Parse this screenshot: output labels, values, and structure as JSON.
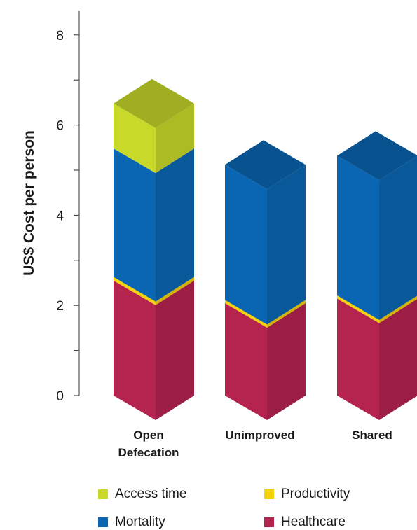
{
  "chart_data": {
    "type": "bar",
    "stacked": true,
    "three_d": true,
    "ylabel": "US$ Cost per person",
    "xlabel": "",
    "ylim": [
      0,
      8
    ],
    "yticks": [
      0,
      2,
      4,
      6,
      8
    ],
    "categories": [
      "Open\nDefecation",
      "Unimproved",
      "Shared"
    ],
    "series": [
      {
        "name": "Healthcare",
        "color": "#b5234f",
        "values": [
          2.55,
          2.05,
          2.15
        ]
      },
      {
        "name": "Productivity",
        "color": "#f5d20a",
        "values": [
          0.08,
          0.07,
          0.07
        ]
      },
      {
        "name": "Mortality",
        "color": "#0a66b3",
        "values": [
          2.85,
          3.0,
          3.1
        ]
      },
      {
        "name": "Access time",
        "color": "#c8d92a",
        "values": [
          1.0,
          0,
          0
        ]
      }
    ],
    "legend": {
      "position": "bottom",
      "items": [
        "Access time",
        "Productivity",
        "Mortality",
        "Healthcare"
      ]
    }
  }
}
